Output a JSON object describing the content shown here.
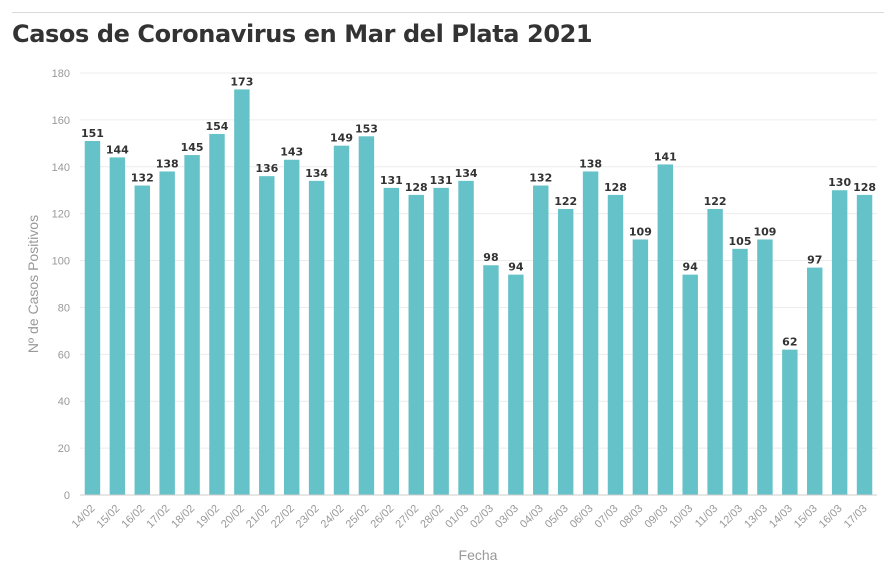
{
  "title": "Casos de Coronavirus en Mar del Plata 2021",
  "chart_data": {
    "type": "bar",
    "title": "Casos de Coronavirus en Mar del Plata 2021",
    "xlabel": "Fecha",
    "ylabel": "Nº de Casos Positivos",
    "ylim": [
      0,
      180
    ],
    "yticks": [
      0,
      20,
      40,
      60,
      80,
      100,
      120,
      140,
      160,
      180
    ],
    "grid": true,
    "bar_color": "#66c2c9",
    "categories": [
      "14/02",
      "15/02",
      "16/02",
      "17/02",
      "18/02",
      "19/02",
      "20/02",
      "21/02",
      "22/02",
      "23/02",
      "24/02",
      "25/02",
      "26/02",
      "27/02",
      "28/02",
      "01/03",
      "02/03",
      "03/03",
      "04/03",
      "05/03",
      "06/03",
      "07/03",
      "08/03",
      "09/03",
      "10/03",
      "11/03",
      "12/03",
      "13/03",
      "14/03",
      "15/03",
      "16/03",
      "17/03"
    ],
    "values": [
      151,
      144,
      132,
      138,
      145,
      154,
      173,
      136,
      143,
      134,
      149,
      153,
      131,
      128,
      131,
      134,
      98,
      94,
      132,
      122,
      138,
      128,
      109,
      141,
      94,
      122,
      105,
      109,
      62,
      97,
      130,
      128
    ]
  }
}
